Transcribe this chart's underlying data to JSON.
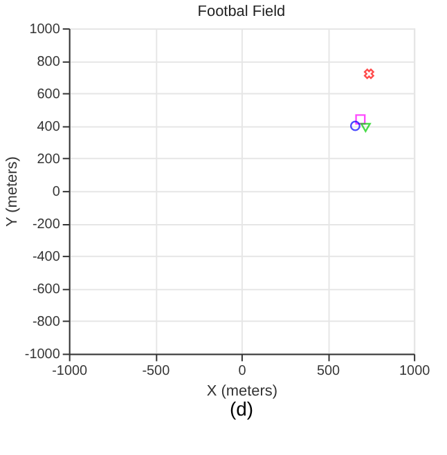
{
  "chart_data": {
    "type": "scatter",
    "title": "Footbal Field",
    "xlabel": "X (meters)",
    "ylabel": "Y (meters)",
    "annotations": [
      "(d)"
    ],
    "xlim": [
      -1000,
      1000
    ],
    "ylim": [
      -1000,
      1000
    ],
    "xticks": [
      -1000,
      -500,
      0,
      500,
      1000
    ],
    "yticks": [
      -1000,
      -800,
      -600,
      -400,
      -200,
      0,
      200,
      400,
      600,
      800,
      1000
    ],
    "grid": true,
    "series": [
      {
        "color": "#ff0000",
        "marker": "cross",
        "x": [
          740
        ],
        "values": [
          720
        ]
      },
      {
        "color": "#ff00ff",
        "marker": "square",
        "x": [
          690
        ],
        "values": [
          440
        ]
      },
      {
        "color": "#0000ff",
        "marker": "circle",
        "x": [
          660
        ],
        "values": [
          400
        ]
      },
      {
        "color": "#00cc00",
        "marker": "triangle",
        "x": [
          720
        ],
        "values": [
          390
        ]
      }
    ]
  }
}
